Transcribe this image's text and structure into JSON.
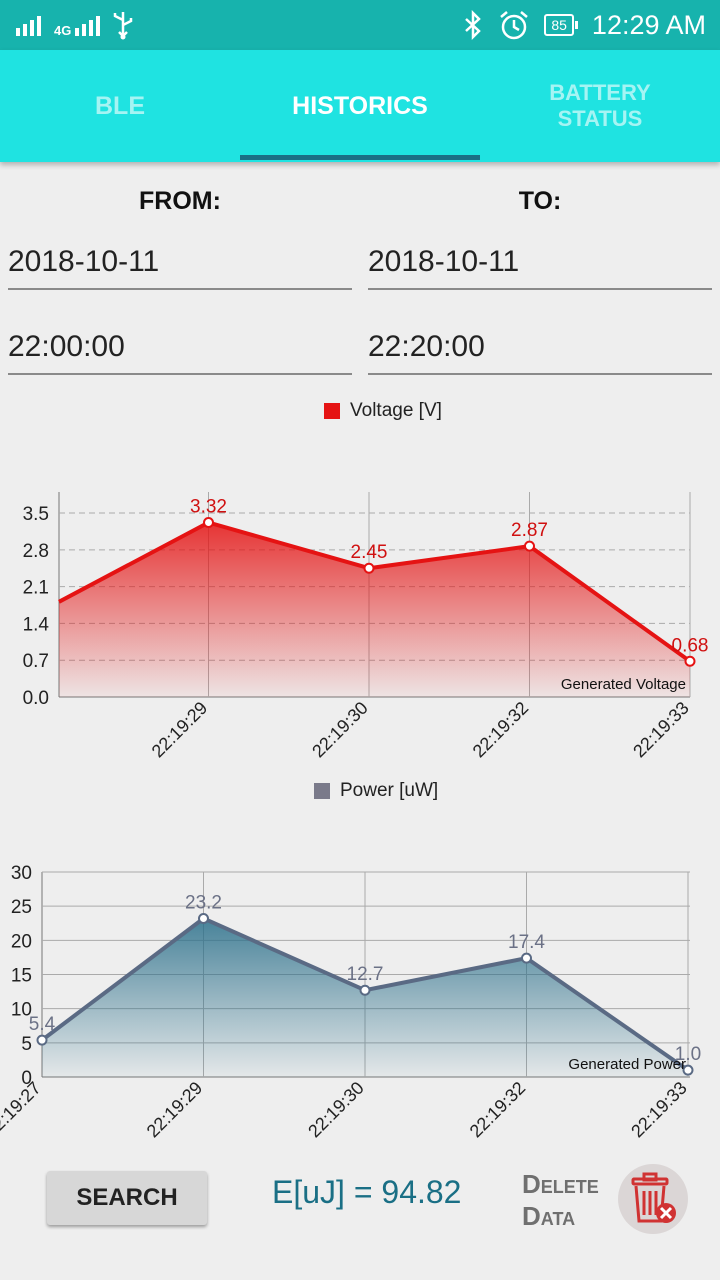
{
  "status_bar": {
    "time": "12:29 AM",
    "battery": "85",
    "network": "4G",
    "icons": [
      "signal-icon",
      "signal-4g-icon",
      "usb-icon",
      "bluetooth-icon",
      "alarm-icon",
      "battery-icon"
    ]
  },
  "tabs": [
    {
      "label": "BLE",
      "active": false
    },
    {
      "label": "HISTORICS",
      "active": true
    },
    {
      "label": "BATTERY STATUS",
      "active": false
    }
  ],
  "form": {
    "from_label": "FROM:",
    "to_label": "TO:",
    "from_date": "2018-10-11",
    "to_date": "2018-10-11",
    "from_time": "22:00:00",
    "to_time": "22:20:00"
  },
  "chart_data": [
    {
      "type": "area",
      "legend": "Voltage [V]",
      "description": "Generated Voltage",
      "color": "#e51313",
      "x": [
        "22:19:27",
        "22:19:29",
        "22:19:30",
        "22:19:32",
        "22:19:33"
      ],
      "y": [
        1.7,
        3.32,
        2.45,
        2.87,
        0.68
      ],
      "value_labels": [
        "",
        "3.32",
        "2.45",
        "2.87",
        "0.68"
      ],
      "x_tick_labels": [
        "22:19:29",
        "22:19:30",
        "22:19:32",
        "22:19:33"
      ],
      "y_ticks": [
        "0.0",
        "0.7",
        "1.4",
        "2.1",
        "2.8",
        "3.5"
      ],
      "ylim": [
        0,
        3.9
      ]
    },
    {
      "type": "area",
      "legend": "Power [uW]",
      "description": "Generated Power",
      "color": "#5a6a84",
      "fill_color": "#2a6f8a",
      "x": [
        "22:19:27",
        "22:19:29",
        "22:19:30",
        "22:19:32",
        "22:19:33"
      ],
      "y": [
        5.4,
        23.2,
        12.7,
        17.4,
        1.0
      ],
      "value_labels": [
        "5.4",
        "23.2",
        "12.7",
        "17.4",
        "1.0"
      ],
      "x_tick_labels": [
        "22:19:27",
        "22:19:29",
        "22:19:30",
        "22:19:32",
        "22:19:33"
      ],
      "y_ticks": [
        "0",
        "5",
        "10",
        "15",
        "20",
        "25",
        "30"
      ],
      "ylim": [
        0,
        30
      ]
    }
  ],
  "footer": {
    "search_label": "SEARCH",
    "energy": "E[uJ] = 94.82",
    "delete_label_1": "Delete",
    "delete_label_2": "Data"
  }
}
